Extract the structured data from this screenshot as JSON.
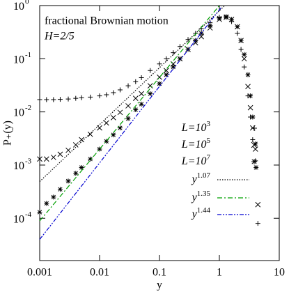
{
  "chart_data": {
    "type": "scatter",
    "xscale": "log",
    "yscale": "log",
    "xlabel": "y",
    "ylabel": "P₊(y)",
    "annotations": [
      "fractional Brownian motion",
      "H=2/5"
    ],
    "xlim": [
      0.001,
      10
    ],
    "ylim": [
      1.6e-05,
      1
    ],
    "xticks": [
      0.001,
      0.01,
      0.1,
      1,
      10
    ],
    "yticks": [
      {
        "value": 0.0001,
        "label": "10",
        "sup": "-4"
      },
      {
        "value": 0.001,
        "label": "10",
        "sup": "-3"
      },
      {
        "value": 0.01,
        "label": "10",
        "sup": "-2"
      },
      {
        "value": 0.1,
        "label": "10",
        "sup": "-1"
      },
      {
        "value": 1,
        "label": "10",
        "sup": "0"
      }
    ],
    "series": [
      {
        "name": "L=10",
        "sup": "3",
        "marker": "plus",
        "color": "#000000",
        "x": [
          0.001,
          0.0013,
          0.0017,
          0.0022,
          0.003,
          0.004,
          0.005,
          0.007,
          0.01,
          0.013,
          0.017,
          0.022,
          0.03,
          0.04,
          0.05,
          0.07,
          0.1,
          0.13,
          0.17,
          0.22,
          0.3,
          0.4,
          0.5,
          0.7,
          1,
          1.3,
          1.6,
          2,
          2.3,
          2.6,
          3,
          3.3,
          3.6,
          4,
          4.4
        ],
        "values": [
          0.017,
          0.017,
          0.017,
          0.0172,
          0.0175,
          0.018,
          0.0185,
          0.019,
          0.02,
          0.021,
          0.023,
          0.026,
          0.031,
          0.037,
          0.044,
          0.06,
          0.08,
          0.1,
          0.13,
          0.17,
          0.23,
          0.3,
          0.37,
          0.48,
          0.6,
          0.6,
          0.5,
          0.3,
          0.15,
          0.07,
          0.02,
          0.008,
          0.003,
          0.0012,
          8e-05
        ]
      },
      {
        "name": "L=10",
        "sup": "5",
        "marker": "cross",
        "color": "#000000",
        "x": [
          0.001,
          0.0013,
          0.0017,
          0.0022,
          0.003,
          0.004,
          0.005,
          0.007,
          0.01,
          0.013,
          0.017,
          0.022,
          0.03,
          0.04,
          0.05,
          0.07,
          0.1,
          0.13,
          0.17,
          0.22,
          0.3,
          0.4,
          0.5,
          0.7,
          1,
          1.3,
          1.6,
          2,
          2.3,
          2.6,
          3,
          3.3,
          3.6,
          4,
          4.4
        ],
        "values": [
          0.0013,
          0.0013,
          0.0014,
          0.0016,
          0.0019,
          0.0024,
          0.003,
          0.0038,
          0.005,
          0.0062,
          0.0078,
          0.0098,
          0.013,
          0.018,
          0.022,
          0.031,
          0.045,
          0.06,
          0.08,
          0.1,
          0.15,
          0.2,
          0.26,
          0.38,
          0.55,
          0.6,
          0.55,
          0.4,
          0.22,
          0.1,
          0.03,
          0.012,
          0.005,
          0.002,
          0.00018
        ]
      },
      {
        "name": "L=10",
        "sup": "7",
        "marker": "star",
        "color": "#000000",
        "x": [
          0.001,
          0.0013,
          0.0017,
          0.0022,
          0.003,
          0.004,
          0.005,
          0.007,
          0.01,
          0.013,
          0.017,
          0.022,
          0.03,
          0.04,
          0.05,
          0.07,
          0.1,
          0.13,
          0.17,
          0.22,
          0.3,
          0.4,
          0.5,
          0.7,
          1,
          1.3,
          1.6,
          2,
          2.3,
          2.6,
          3,
          3.3,
          3.6,
          4,
          4.1
        ],
        "values": [
          0.00013,
          0.00019,
          0.00025,
          0.00035,
          0.0005,
          0.0007,
          0.0009,
          0.0013,
          0.002,
          0.0028,
          0.0037,
          0.005,
          0.0075,
          0.011,
          0.014,
          0.022,
          0.034,
          0.05,
          0.07,
          0.1,
          0.15,
          0.22,
          0.3,
          0.42,
          0.58,
          0.62,
          0.55,
          0.4,
          0.22,
          0.12,
          0.05,
          0.02,
          0.008,
          0.0025,
          0.0009
        ]
      },
      {
        "name": "y",
        "sup": "1.07",
        "marker": "line",
        "dash": "1.5 2",
        "color": "#000000",
        "x": [
          0.001,
          1.2
        ],
        "values": [
          0.00049,
          0.97
        ]
      },
      {
        "name": "y",
        "sup": "1.35",
        "marker": "line",
        "dash": "7 3 2 3",
        "color": "#00a000",
        "x": [
          0.001,
          1
        ],
        "values": [
          8.9e-05,
          1
        ]
      },
      {
        "name": "y",
        "sup": "1.44",
        "marker": "line",
        "dash": "6 2 2 2 2 2",
        "color": "#0000d0",
        "x": [
          0.001,
          1.1
        ],
        "values": [
          4e-05,
          0.95
        ]
      }
    ]
  }
}
